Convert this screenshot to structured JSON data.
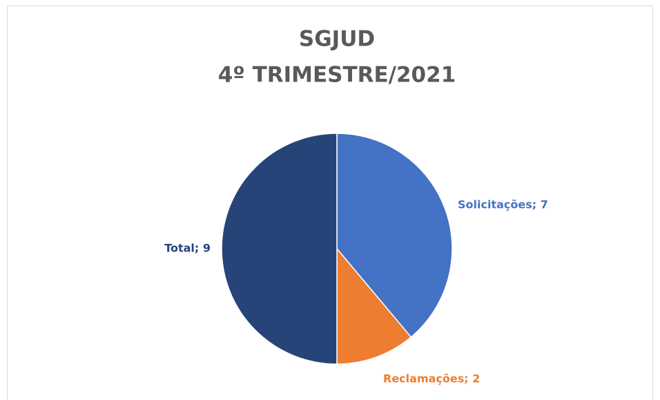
{
  "chart_data": {
    "type": "pie",
    "title": "SGJUD",
    "subtitle": "4º TRIMESTRE/2021",
    "categories": [
      "Solicitações",
      "Reclamações",
      "Total"
    ],
    "values": [
      7,
      2,
      9
    ],
    "value_labels": [
      "Solicitações; 7",
      "Reclamações; 2",
      "Total; 9"
    ],
    "colors": [
      "#4472c4",
      "#ed7d31",
      "#264478"
    ]
  }
}
